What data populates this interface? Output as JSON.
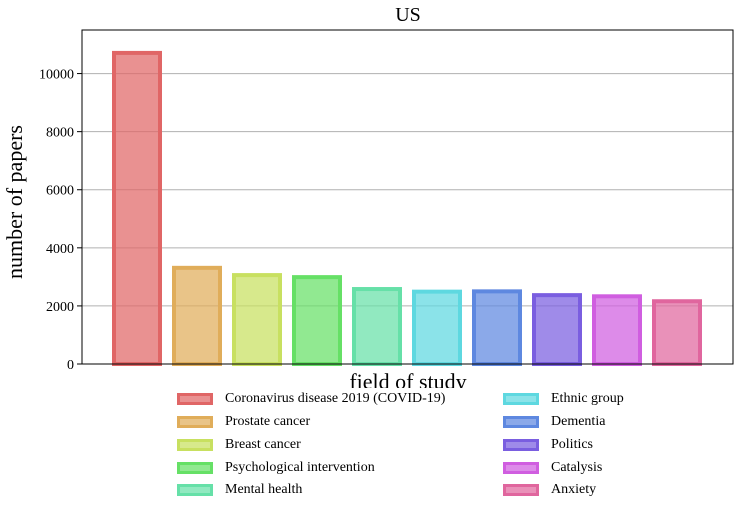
{
  "chart_data": {
    "type": "bar",
    "title": "US",
    "xlabel": "field of study",
    "ylabel": "number of papers",
    "ylim": [
      0,
      11500
    ],
    "yticks": [
      0,
      2000,
      4000,
      6000,
      8000,
      10000
    ],
    "ytick_labels": [
      "0",
      "2000",
      "4000",
      "6000",
      "8000",
      "10000"
    ],
    "grid": "horizontal",
    "legend_placement": "bottom",
    "categories": [
      "Coronavirus disease 2019 (COVID-19)",
      "Prostate cancer",
      "Breast cancer",
      "Psychological intervention",
      "Mental health",
      "Ethnic group",
      "Dementia",
      "Politics",
      "Catalysis",
      "Anxiety"
    ],
    "values": [
      10780,
      3380,
      3130,
      3060,
      2650,
      2560,
      2570,
      2440,
      2400,
      2230
    ],
    "colors": [
      "#e06666",
      "#e0ad5a",
      "#c8e060",
      "#66e066",
      "#66e0a8",
      "#5ed8e0",
      "#5e88e0",
      "#7a5ee0",
      "#d05ee0",
      "#e0669e"
    ]
  }
}
